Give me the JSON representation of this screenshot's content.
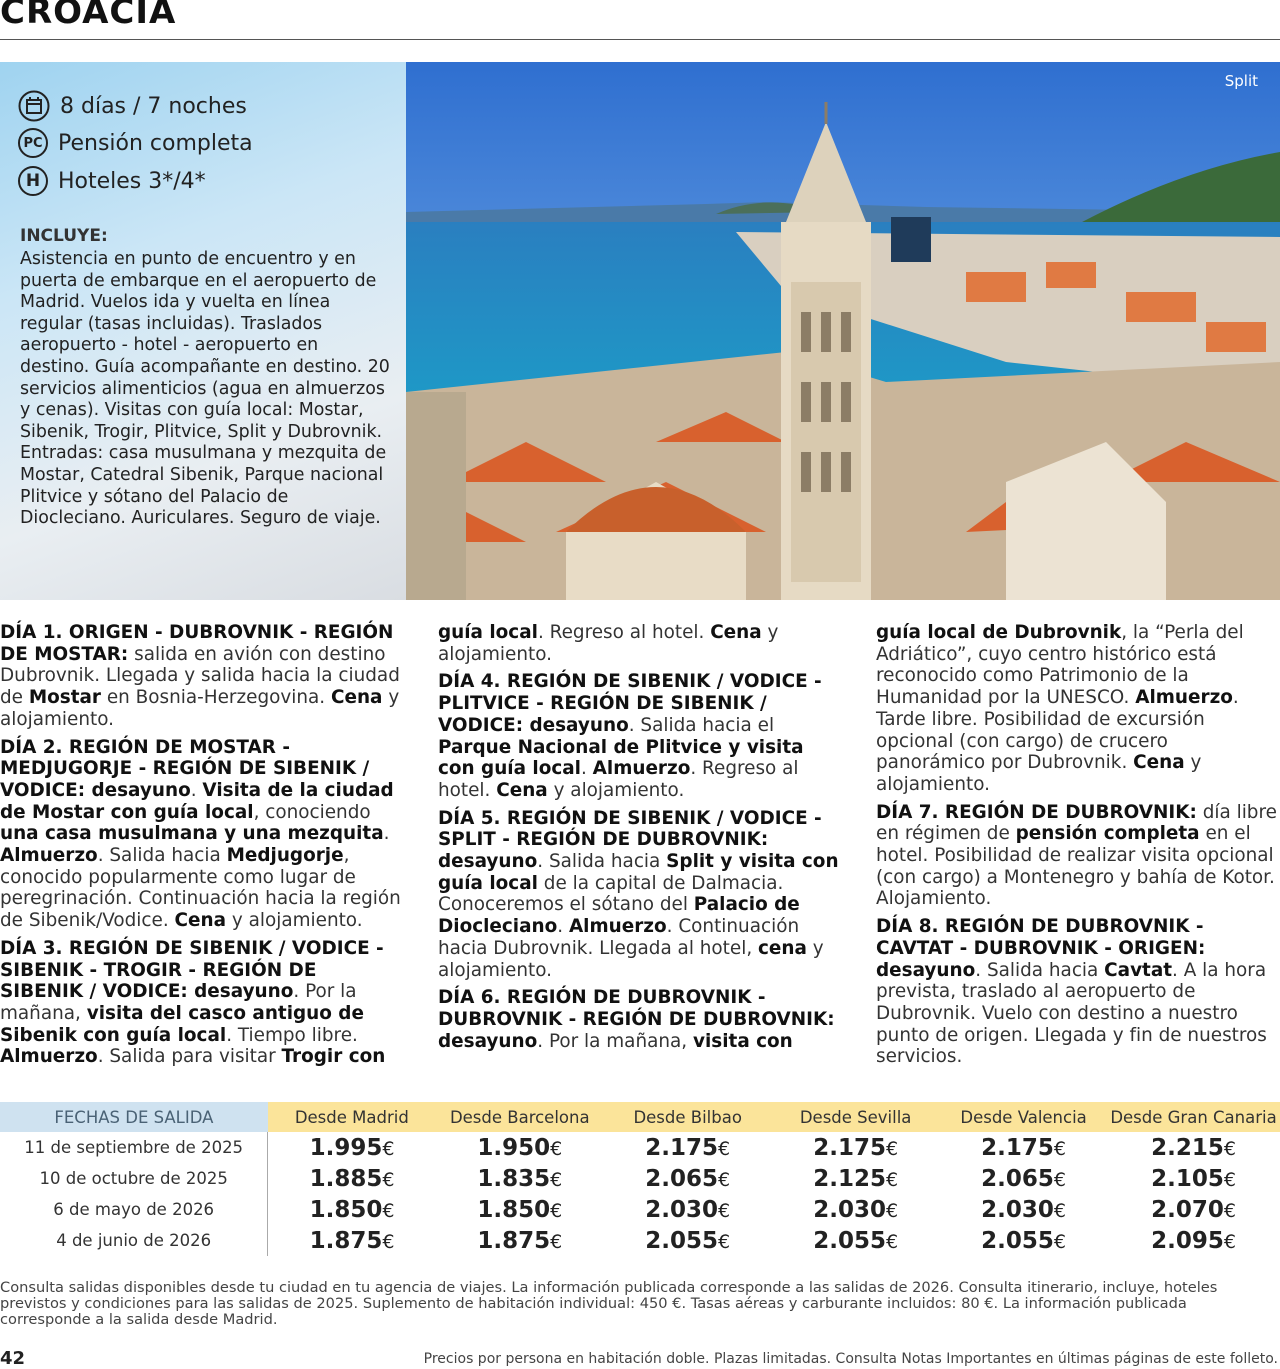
{
  "header": {
    "title": "CROACIA"
  },
  "summary": {
    "items": [
      "8 días / 7 noches",
      "Pensión completa",
      "Hoteles 3*/4*"
    ],
    "pc_icon": "PC",
    "h_icon": "H"
  },
  "includes": {
    "title": "INCLUYE:",
    "text": "Asistencia en punto de encuentro y en puerta de embarque en el aeropuerto de Madrid. Vuelos ida y vuelta en línea regular (tasas incluidas). Traslados aeropuerto - hotel - aeropuerto en destino. Guía acompañante en destino. 20 servicios alimenticios (agua en almuerzos y cenas). Visitas con guía local: Mostar, Sibenik, Trogir, Plitvice, Split y Dubrovnik. Entradas: casa musulmana y mezquita de Mostar, Catedral Sibenik, Parque nacional Plitvice y sótano del Palacio de Diocleciano. Auriculares. Seguro de viaje."
  },
  "photo": {
    "caption": "Split"
  },
  "itinerary": [
    [
      {
        "text": "DÍA 1. ORIGEN - DUBROVNIK - REGIÓN DE MOSTAR:",
        "bold": true
      },
      {
        "text": " salida en avión con destino Dubrovnik. Llegada y salida hacia la ciudad de ",
        "bold": false
      },
      {
        "text": "Mostar",
        "bold": true
      },
      {
        "text": " en Bosnia-Herzegovina. ",
        "bold": false
      },
      {
        "text": "Cena",
        "bold": true
      },
      {
        "text": " y alojamiento.",
        "bold": false
      }
    ],
    [
      {
        "text": "DÍA 2. REGIÓN DE MOSTAR - MEDJUGORJE - REGIÓN DE SIBENIK / VODICE: desayuno",
        "bold": true
      },
      {
        "text": ". ",
        "bold": false
      },
      {
        "text": "Visita de la ciudad de Mostar con guía local",
        "bold": true
      },
      {
        "text": ", conociendo ",
        "bold": false
      },
      {
        "text": "una casa musulmana y una mezquita",
        "bold": true
      },
      {
        "text": ". ",
        "bold": false
      },
      {
        "text": "Almuerzo",
        "bold": true
      },
      {
        "text": ". Salida hacia ",
        "bold": false
      },
      {
        "text": "Medjugorje",
        "bold": true
      },
      {
        "text": ", conocido popularmente como lugar de peregrinación. Continuación hacia la región de Sibenik/Vodice. ",
        "bold": false
      },
      {
        "text": "Cena",
        "bold": true
      },
      {
        "text": " y alojamiento.",
        "bold": false
      }
    ],
    [
      {
        "text": "DÍA 3. REGIÓN DE SIBENIK / VODICE - SIBENIK - TROGIR - REGIÓN DE SIBENIK / VODICE: desayuno",
        "bold": true
      },
      {
        "text": ". Por la mañana, ",
        "bold": false
      },
      {
        "text": "visita del casco antiguo de Sibenik con guía local",
        "bold": true
      },
      {
        "text": ". Tiempo libre. ",
        "bold": false
      },
      {
        "text": "Almuerzo",
        "bold": true
      },
      {
        "text": ". Salida para visitar ",
        "bold": false
      },
      {
        "text": "Trogir con guía local",
        "bold": true
      },
      {
        "text": ". Regreso al hotel. ",
        "bold": false
      },
      {
        "text": "Cena",
        "bold": true
      },
      {
        "text": " y alojamiento.",
        "bold": false
      }
    ],
    [
      {
        "text": "DÍA 4. REGIÓN DE SIBENIK / VODICE - PLITVICE - REGIÓN DE SIBENIK / VODICE: desayuno",
        "bold": true
      },
      {
        "text": ". Salida hacia el ",
        "bold": false
      },
      {
        "text": "Parque Nacional de Plitvice y visita con guía local",
        "bold": true
      },
      {
        "text": ". ",
        "bold": false
      },
      {
        "text": "Almuerzo",
        "bold": true
      },
      {
        "text": ". Regreso al hotel. ",
        "bold": false
      },
      {
        "text": "Cena",
        "bold": true
      },
      {
        "text": " y alojamiento.",
        "bold": false
      }
    ],
    [
      {
        "text": "DÍA 5. REGIÓN DE SIBENIK / VODICE - SPLIT - REGIÓN DE DUBROVNIK: desayuno",
        "bold": true
      },
      {
        "text": ". Salida hacia ",
        "bold": false
      },
      {
        "text": "Split y visita con guía local",
        "bold": true
      },
      {
        "text": " de la capital de Dalmacia. Conoceremos el sótano del ",
        "bold": false
      },
      {
        "text": "Palacio de Diocleciano",
        "bold": true
      },
      {
        "text": ". ",
        "bold": false
      },
      {
        "text": "Almuerzo",
        "bold": true
      },
      {
        "text": ". Continuación hacia Dubrovnik. Llegada al hotel, ",
        "bold": false
      },
      {
        "text": "cena",
        "bold": true
      },
      {
        "text": " y alojamiento.",
        "bold": false
      }
    ],
    [
      {
        "text": "DÍA 6. REGIÓN DE DUBROVNIK - DUBROVNIK - REGIÓN DE DUBROVNIK: desayuno",
        "bold": true
      },
      {
        "text": ". Por la mañana, ",
        "bold": false
      },
      {
        "text": "visita con guía local de Dubrovnik",
        "bold": true
      },
      {
        "text": ", la “Perla del Adriático”, cuyo centro histórico está reconocido como Patrimonio de la Humanidad por la UNESCO. ",
        "bold": false
      },
      {
        "text": "Almuerzo",
        "bold": true
      },
      {
        "text": ". Tarde libre. Posibilidad de excursión opcional (con cargo) de crucero panorámico por Dubrovnik. ",
        "bold": false
      },
      {
        "text": "Cena",
        "bold": true
      },
      {
        "text": " y alojamiento.",
        "bold": false
      }
    ],
    [
      {
        "text": "DÍA 7. REGIÓN DE DUBROVNIK:",
        "bold": true
      },
      {
        "text": " día libre en régimen de ",
        "bold": false
      },
      {
        "text": "pensión completa",
        "bold": true
      },
      {
        "text": " en el hotel. Posibilidad de realizar visita opcional (con cargo) a Montenegro y bahía de Kotor. Alojamiento.",
        "bold": false
      }
    ],
    [
      {
        "text": "DÍA 8. REGIÓN DE DUBROVNIK - CAVTAT - DUBROVNIK - ORIGEN: desayuno",
        "bold": true
      },
      {
        "text": ". Salida hacia ",
        "bold": false
      },
      {
        "text": "Cavtat",
        "bold": true
      },
      {
        "text": ". A la hora prevista, traslado al aeropuerto de Dubrovnik. Vuelo con destino a nuestro punto de origen. Llegada y fin de nuestros servicios.",
        "bold": false
      }
    ]
  ],
  "table": {
    "header": [
      "FECHAS DE SALIDA",
      "Desde Madrid",
      "Desde Barcelona",
      "Desde Bilbao",
      "Desde Sevilla",
      "Desde Valencia",
      "Desde Gran Canaria"
    ],
    "currency": "€",
    "rows": [
      [
        "11 de septiembre de 2025",
        "1.995",
        "1.950",
        "2.175",
        "2.175",
        "2.175",
        "2.215"
      ],
      [
        "10 de octubre de 2025",
        "1.885",
        "1.835",
        "2.065",
        "2.125",
        "2.065",
        "2.105"
      ],
      [
        "6 de mayo de 2026",
        "1.850",
        "1.850",
        "2.030",
        "2.030",
        "2.030",
        "2.070"
      ],
      [
        "4 de junio de 2026",
        "1.875",
        "1.875",
        "2.055",
        "2.055",
        "2.055",
        "2.095"
      ]
    ]
  },
  "notes": "Consulta salidas disponibles desde tu ciudad en tu agencia de viajes. La información publicada corresponde a las salidas de 2026. Consulta itinerario, incluye, hoteles previstos y condiciones para las salidas de 2025. Suplemento de habitación individual: 450 €. Tasas aéreas y carburante incluidos: 80 €. La información publicada corresponde a la salida desde Madrid.",
  "footer": {
    "page_number": "42",
    "text": "Precios por persona en habitación doble. Plazas limitadas. Consulta Notas Importantes en últimas páginas de este folleto."
  }
}
